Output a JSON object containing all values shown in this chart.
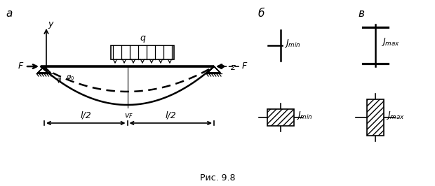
{
  "bg_color": "#ffffff",
  "fig_width": 6.2,
  "fig_height": 2.66,
  "dpi": 100,
  "label_a": "a",
  "label_b": "б",
  "label_v": "в",
  "label_F": "F",
  "label_q": "q",
  "label_y": "y",
  "label_z": "z",
  "label_l2_left": "l/2",
  "label_l2_right": "l/2",
  "caption": "Рис. 9.8"
}
